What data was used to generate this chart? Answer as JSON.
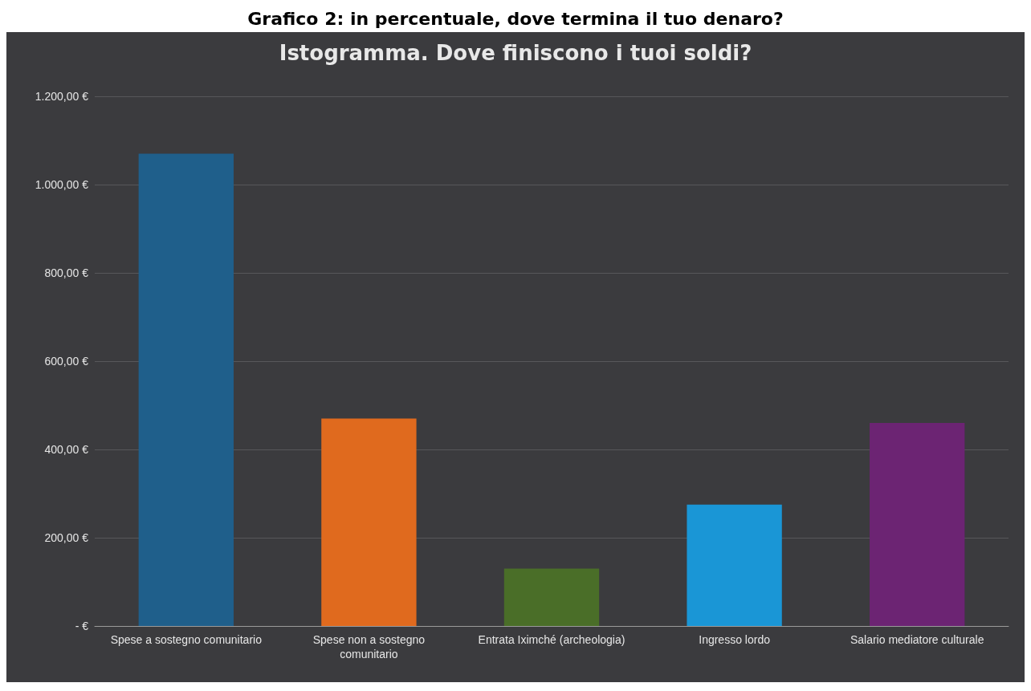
{
  "chart_data": {
    "type": "bar",
    "title": "Grafico 2: in percentuale, dove termina il tuo denaro?",
    "subtitle": "Istogramma. Dove finiscono i tuoi soldi?",
    "categories": [
      "Spese a sostegno comunitario",
      "Spese non a sostegno\ncomunitario",
      "Entrata Iximché (archeologia)",
      "Ingresso lordo",
      "Salario mediatore culturale"
    ],
    "values": [
      1070,
      470,
      130,
      275,
      460
    ],
    "colors": [
      "#1f5f8b",
      "#e06a1e",
      "#4a6e28",
      "#1a96d6",
      "#6c2473"
    ],
    "ylim": [
      0,
      1200
    ],
    "yticks": [
      {
        "value": 0,
        "label": "- €"
      },
      {
        "value": 200,
        "label": "200,00 €"
      },
      {
        "value": 400,
        "label": "400,00 €"
      },
      {
        "value": 600,
        "label": "600,00 €"
      },
      {
        "value": 800,
        "label": "800,00 €"
      },
      {
        "value": 1000,
        "label": "1.000,00 €"
      },
      {
        "value": 1200,
        "label": "1.200,00 €"
      }
    ],
    "grid": "y"
  }
}
